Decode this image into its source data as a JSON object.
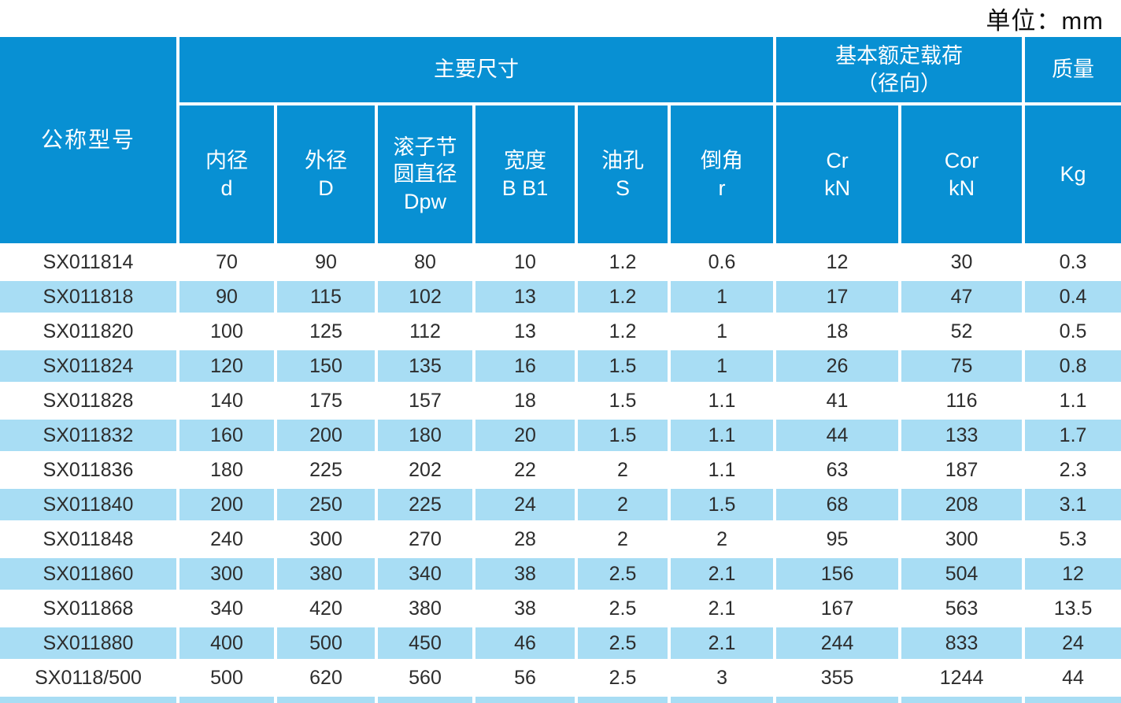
{
  "unit_label": "单位：mm",
  "colors": {
    "header_blue": "#0890d3",
    "row_stripe_blue": "#a8ddf4",
    "data_text": "#2d2d2d",
    "header_text": "#ffffff"
  },
  "table": {
    "group_headers": {
      "model": "公称型号",
      "main_dimensions": "主要尺寸",
      "basic_load_rating": "基本额定载荷\n（径向）",
      "mass": "质量"
    },
    "sub_headers": {
      "bore": "内径\nd",
      "outer": "外径\nD",
      "roller_pitch": "滚子节\n圆直径\nDpw",
      "width": "宽度\nB B1",
      "oil_hole": "油孔\nS",
      "chamfer": "倒角\nr",
      "cr": "Cr\nkN",
      "cor": "Cor\nkN",
      "kg": "Kg"
    },
    "rows": [
      {
        "model": "SX011814",
        "values": [
          "70",
          "90",
          "80",
          "10",
          "1.2",
          "0.6",
          "12",
          "30",
          "0.3"
        ]
      },
      {
        "model": "SX011818",
        "values": [
          "90",
          "115",
          "102",
          "13",
          "1.2",
          "1",
          "17",
          "47",
          "0.4"
        ]
      },
      {
        "model": "SX011820",
        "values": [
          "100",
          "125",
          "112",
          "13",
          "1.2",
          "1",
          "18",
          "52",
          "0.5"
        ]
      },
      {
        "model": "SX011824",
        "values": [
          "120",
          "150",
          "135",
          "16",
          "1.5",
          "1",
          "26",
          "75",
          "0.8"
        ]
      },
      {
        "model": "SX011828",
        "values": [
          "140",
          "175",
          "157",
          "18",
          "1.5",
          "1.1",
          "41",
          "116",
          "1.1"
        ]
      },
      {
        "model": "SX011832",
        "values": [
          "160",
          "200",
          "180",
          "20",
          "1.5",
          "1.1",
          "44",
          "133",
          "1.7"
        ]
      },
      {
        "model": "SX011836",
        "values": [
          "180",
          "225",
          "202",
          "22",
          "2",
          "1.1",
          "63",
          "187",
          "2.3"
        ]
      },
      {
        "model": "SX011840",
        "values": [
          "200",
          "250",
          "225",
          "24",
          "2",
          "1.5",
          "68",
          "208",
          "3.1"
        ]
      },
      {
        "model": "SX011848",
        "values": [
          "240",
          "300",
          "270",
          "28",
          "2",
          "2",
          "95",
          "300",
          "5.3"
        ]
      },
      {
        "model": "SX011860",
        "values": [
          "300",
          "380",
          "340",
          "38",
          "2.5",
          "2.1",
          "156",
          "504",
          "12"
        ]
      },
      {
        "model": "SX011868",
        "values": [
          "340",
          "420",
          "380",
          "38",
          "2.5",
          "2.1",
          "167",
          "563",
          "13.5"
        ]
      },
      {
        "model": "SX011880",
        "values": [
          "400",
          "500",
          "450",
          "46",
          "2.5",
          "2.1",
          "244",
          "833",
          "24"
        ]
      },
      {
        "model": "SX0118/500",
        "values": [
          "500",
          "620",
          "560",
          "56",
          "2.5",
          "3",
          "355",
          "1244",
          "44"
        ]
      }
    ],
    "partial_row_clipped_at_bottom": true
  }
}
